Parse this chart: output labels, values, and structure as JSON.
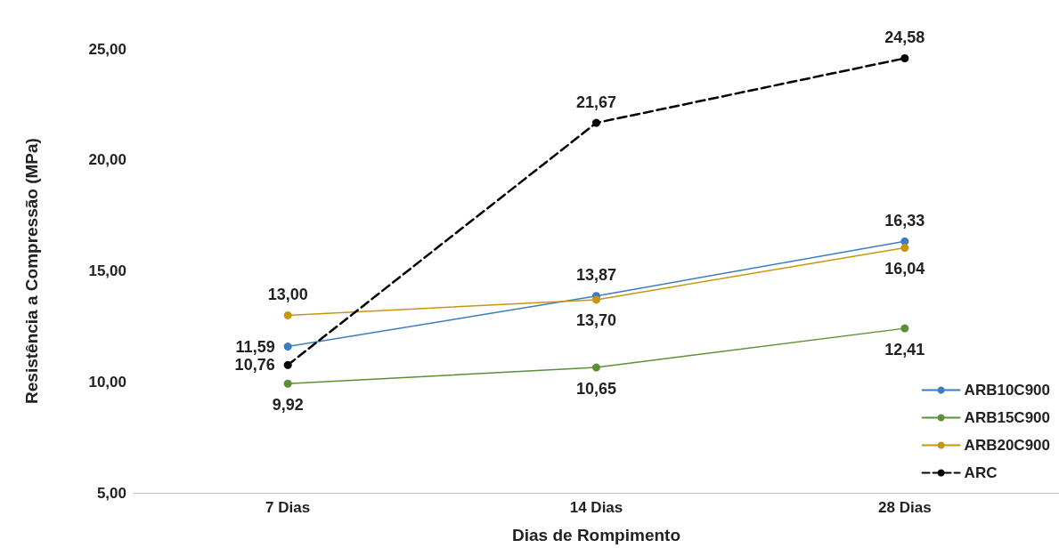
{
  "chart_data": {
    "type": "line",
    "xlabel": "Dias de Rompimento",
    "ylabel": "Resistência a Compressão (MPa)",
    "categories": [
      "7 Dias",
      "14 Dias",
      "28 Dias"
    ],
    "series": [
      {
        "name": "ARB10C900",
        "color": "#3d7cc0",
        "values": [
          11.59,
          13.87,
          16.33
        ],
        "value_labels": [
          "11,59",
          "13,87",
          "16,33"
        ]
      },
      {
        "name": "ARB15C900",
        "color": "#5b9036",
        "values": [
          9.92,
          10.65,
          12.41
        ],
        "value_labels": [
          "9,92",
          "10,65",
          "12,41"
        ]
      },
      {
        "name": "ARB20C900",
        "color": "#c8960e",
        "values": [
          13.0,
          13.7,
          16.04
        ],
        "value_labels": [
          "13,00",
          "13,70",
          "16,04"
        ]
      },
      {
        "name": "ARC",
        "color": "#000000",
        "values": [
          10.76,
          21.67,
          24.58
        ],
        "value_labels": [
          "10,76",
          "21,67",
          "24,58"
        ],
        "line_style": "dashed"
      }
    ],
    "ylim": [
      5,
      25
    ],
    "yticks": [
      {
        "value": 5,
        "label": "5,00"
      },
      {
        "value": 10,
        "label": "10,00"
      },
      {
        "value": 15,
        "label": "15,00"
      },
      {
        "value": 20,
        "label": "20,00"
      },
      {
        "value": 25,
        "label": "25,00"
      }
    ],
    "grid": false,
    "legend": "right",
    "marker": "circle",
    "line_style": "solid"
  }
}
